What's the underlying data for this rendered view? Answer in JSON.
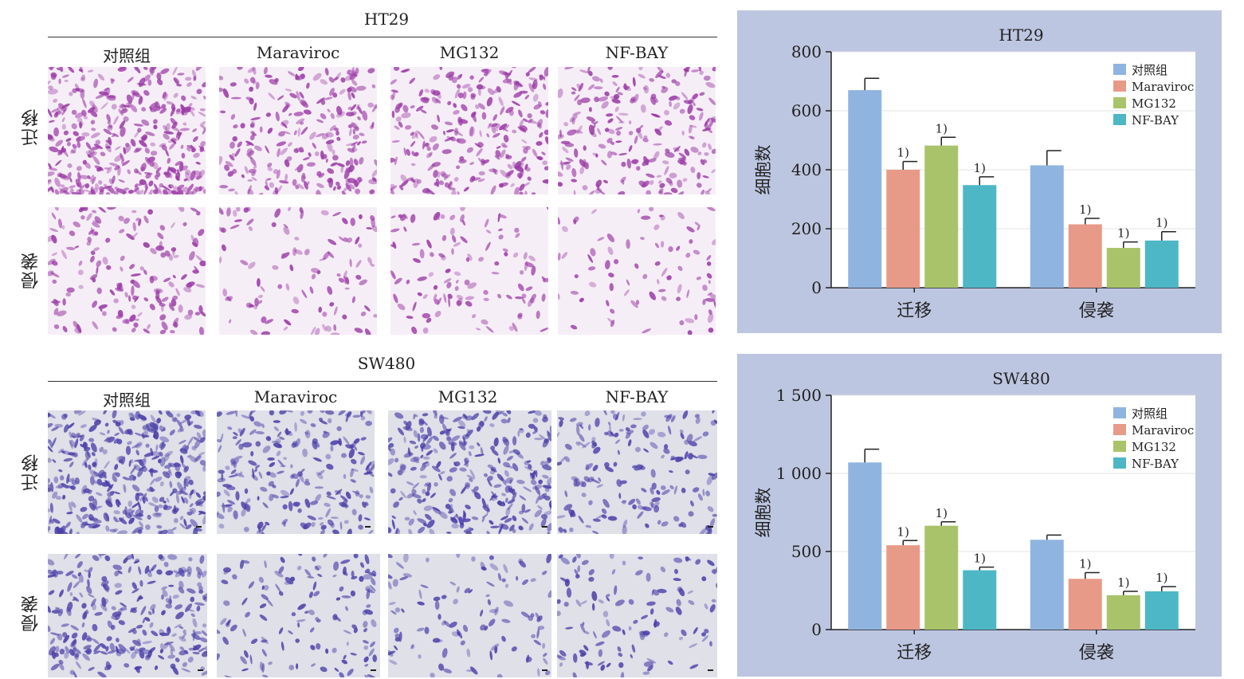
{
  "figure": {
    "ht29_panel": {
      "title": "HT29",
      "columns": [
        "对照组",
        "Maraviroc",
        "MG132",
        "NF-BAY"
      ],
      "rows": [
        "迁移",
        "侵袭"
      ],
      "stain_color": "#9b3aa6",
      "background_color": "#f6eef6"
    },
    "sw480_panel": {
      "title": "SW480",
      "columns": [
        "对照组",
        "Maraviroc",
        "MG132",
        "NF-BAY"
      ],
      "rows": [
        "迁移",
        "侵袭"
      ],
      "stain_color": "#4a3fa8",
      "background_color": "#dfe0e8"
    }
  },
  "colors": {
    "chart_background": "#bdc6e1",
    "plot_background": "#ffffff",
    "series": [
      "#8fb4e0",
      "#e89a88",
      "#a9c36a",
      "#4db7c6"
    ]
  },
  "chart_data": [
    {
      "type": "bar",
      "title": "HT29",
      "ylabel": "细胞数",
      "xlabel": "",
      "categories": [
        "迁移",
        "侵袭"
      ],
      "ylim": [
        0,
        800
      ],
      "yticks": [
        "0",
        "200",
        "400",
        "600",
        "800"
      ],
      "ytick_values": [
        0,
        200,
        400,
        600,
        800
      ],
      "legend_position": "top-right",
      "significance_label": "1)",
      "series": [
        {
          "name": "对照组",
          "values": [
            670,
            415
          ],
          "errors": [
            40,
            50
          ],
          "significant": [
            false,
            false
          ]
        },
        {
          "name": "Maraviroc",
          "values": [
            400,
            215
          ],
          "errors": [
            28,
            20
          ],
          "significant": [
            true,
            true
          ]
        },
        {
          "name": "MG132",
          "values": [
            482,
            135
          ],
          "errors": [
            28,
            20
          ],
          "significant": [
            true,
            true
          ]
        },
        {
          "name": "NF-BAY",
          "values": [
            348,
            160
          ],
          "errors": [
            28,
            30
          ],
          "significant": [
            true,
            true
          ]
        }
      ]
    },
    {
      "type": "bar",
      "title": "SW480",
      "ylabel": "细胞数",
      "xlabel": "",
      "categories": [
        "迁移",
        "侵袭"
      ],
      "ylim": [
        0,
        1500
      ],
      "yticks": [
        "0",
        "500",
        "1 000",
        "1 500"
      ],
      "ytick_values": [
        0,
        500,
        1000,
        1500
      ],
      "legend_position": "top-right",
      "significance_label": "1)",
      "series": [
        {
          "name": "对照组",
          "values": [
            1070,
            575
          ],
          "errors": [
            85,
            30
          ],
          "significant": [
            false,
            false
          ]
        },
        {
          "name": "Maraviroc",
          "values": [
            540,
            325
          ],
          "errors": [
            30,
            40
          ],
          "significant": [
            true,
            true
          ]
        },
        {
          "name": "MG132",
          "values": [
            665,
            220
          ],
          "errors": [
            25,
            25
          ],
          "significant": [
            true,
            true
          ]
        },
        {
          "name": "NF-BAY",
          "values": [
            380,
            245
          ],
          "errors": [
            20,
            30
          ],
          "significant": [
            true,
            true
          ]
        }
      ]
    }
  ]
}
